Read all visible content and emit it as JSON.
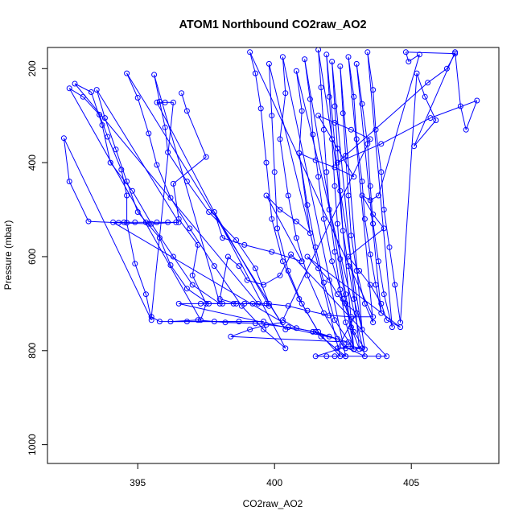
{
  "chart_data": {
    "type": "scatter",
    "title": "ATOM1 Northbound CO2raw_AO2",
    "xlabel": "CO2raw_AO2",
    "ylabel": "Pressure (mbar)",
    "xlim": [
      391.7,
      408.2
    ],
    "ylim": [
      1040,
      155
    ],
    "y_reversed": true,
    "grid": false,
    "legend": "none",
    "marker": "open-circle",
    "connected": true,
    "xticks": [
      395,
      400,
      405
    ],
    "yticks": [
      200,
      400,
      600,
      800,
      1000
    ],
    "series": [
      {
        "color": "#0000ff",
        "points": [
          [
            396.6,
            252
          ],
          [
            396.8,
            290
          ],
          [
            397.5,
            388
          ],
          [
            396.3,
            445
          ],
          [
            396.5,
            520
          ],
          [
            397.2,
            575
          ],
          [
            397.0,
            640
          ],
          [
            397.5,
            700
          ],
          [
            397.3,
            735
          ],
          [
            392.5,
            242
          ],
          [
            393.0,
            260
          ],
          [
            393.6,
            298
          ],
          [
            393.9,
            345
          ],
          [
            394.4,
            415
          ],
          [
            394.6,
            470
          ],
          [
            394.6,
            528
          ],
          [
            394.9,
            615
          ],
          [
            395.3,
            680
          ],
          [
            395.5,
            735
          ],
          [
            392.3,
            348
          ],
          [
            392.5,
            440
          ],
          [
            393.2,
            525
          ],
          [
            394.3,
            528
          ],
          [
            395.4,
            530
          ],
          [
            396.5,
            527
          ],
          [
            393.5,
            245
          ],
          [
            393.8,
            305
          ],
          [
            394.2,
            372
          ],
          [
            394.6,
            440
          ],
          [
            395.0,
            505
          ],
          [
            395.8,
            560
          ],
          [
            396.2,
            618
          ],
          [
            396.8,
            668
          ],
          [
            397.6,
            700
          ],
          [
            398.5,
            700
          ],
          [
            399.4,
            700
          ],
          [
            392.7,
            232
          ],
          [
            393.3,
            250
          ],
          [
            393.7,
            320
          ],
          [
            394.0,
            400
          ],
          [
            394.8,
            460
          ],
          [
            395.5,
            530
          ],
          [
            396.3,
            600
          ],
          [
            397.0,
            660
          ],
          [
            398.0,
            700
          ],
          [
            395.6,
            213
          ],
          [
            395.8,
            270
          ],
          [
            396.0,
            325
          ],
          [
            396.1,
            378
          ],
          [
            396.8,
            440
          ],
          [
            397.6,
            505
          ],
          [
            398.6,
            565
          ],
          [
            399.3,
            625
          ],
          [
            399.8,
            700
          ],
          [
            400.4,
            755
          ],
          [
            394.6,
            210
          ],
          [
            395.0,
            262
          ],
          [
            395.4,
            338
          ],
          [
            395.7,
            405
          ],
          [
            396.2,
            475
          ],
          [
            396.9,
            540
          ],
          [
            397.8,
            620
          ],
          [
            398.8,
            705
          ],
          [
            399.6,
            755
          ],
          [
            400.4,
            795
          ],
          [
            395.7,
            272
          ],
          [
            396.0,
            272
          ],
          [
            396.3,
            272
          ],
          [
            395.5,
            728
          ],
          [
            395.8,
            738
          ],
          [
            396.8,
            738
          ],
          [
            397.8,
            738
          ],
          [
            398.7,
            738
          ],
          [
            399.6,
            738
          ],
          [
            396.2,
            738
          ],
          [
            397.2,
            735
          ],
          [
            398.2,
            740
          ],
          [
            399.3,
            742
          ],
          [
            400.5,
            750
          ],
          [
            401.5,
            760
          ],
          [
            402.3,
            775
          ],
          [
            396.5,
            700
          ],
          [
            397.3,
            700
          ],
          [
            398.1,
            700
          ],
          [
            398.9,
            700
          ],
          [
            399.7,
            700
          ],
          [
            400.5,
            705
          ],
          [
            401.2,
            715
          ],
          [
            402.0,
            725
          ],
          [
            402.8,
            728
          ],
          [
            403.6,
            728
          ],
          [
            399.1,
            165
          ],
          [
            399.3,
            210
          ],
          [
            399.5,
            285
          ],
          [
            399.7,
            400
          ],
          [
            399.9,
            520
          ],
          [
            400.3,
            610
          ],
          [
            400.9,
            690
          ],
          [
            401.6,
            760
          ],
          [
            402.4,
            812
          ],
          [
            399.8,
            190
          ],
          [
            399.9,
            300
          ],
          [
            400.0,
            420
          ],
          [
            400.1,
            540
          ],
          [
            400.5,
            630
          ],
          [
            401.0,
            700
          ],
          [
            401.7,
            770
          ],
          [
            402.6,
            812
          ],
          [
            400.3,
            175
          ],
          [
            400.4,
            252
          ],
          [
            400.2,
            350
          ],
          [
            400.5,
            470
          ],
          [
            400.8,
            560
          ],
          [
            401.2,
            640
          ],
          [
            401.8,
            720
          ],
          [
            402.5,
            790
          ],
          [
            403.3,
            812
          ],
          [
            400.8,
            205
          ],
          [
            401.0,
            290
          ],
          [
            400.9,
            380
          ],
          [
            401.2,
            490
          ],
          [
            401.5,
            580
          ],
          [
            401.8,
            655
          ],
          [
            402.2,
            735
          ],
          [
            402.9,
            797
          ],
          [
            401.1,
            180
          ],
          [
            401.3,
            265
          ],
          [
            401.4,
            340
          ],
          [
            401.6,
            430
          ],
          [
            401.8,
            520
          ],
          [
            402.1,
            610
          ],
          [
            402.5,
            690
          ],
          [
            402.9,
            760
          ],
          [
            403.3,
            797
          ],
          [
            401.6,
            160
          ],
          [
            401.7,
            240
          ],
          [
            401.8,
            330
          ],
          [
            401.9,
            420
          ],
          [
            402.0,
            500
          ],
          [
            402.2,
            590
          ],
          [
            402.4,
            670
          ],
          [
            402.6,
            740
          ],
          [
            402.9,
            797
          ],
          [
            401.9,
            170
          ],
          [
            402.0,
            260
          ],
          [
            402.1,
            350
          ],
          [
            402.2,
            450
          ],
          [
            402.3,
            530
          ],
          [
            402.4,
            605
          ],
          [
            402.6,
            680
          ],
          [
            402.8,
            750
          ],
          [
            403.1,
            797
          ],
          [
            402.1,
            185
          ],
          [
            402.2,
            280
          ],
          [
            402.3,
            370
          ],
          [
            402.4,
            460
          ],
          [
            402.5,
            545
          ],
          [
            402.7,
            620
          ],
          [
            402.9,
            690
          ],
          [
            403.2,
            755
          ],
          [
            402.4,
            195
          ],
          [
            402.5,
            295
          ],
          [
            402.6,
            385
          ],
          [
            402.7,
            470
          ],
          [
            402.8,
            555
          ],
          [
            403.0,
            630
          ],
          [
            403.3,
            700
          ],
          [
            403.6,
            740
          ],
          [
            402.7,
            175
          ],
          [
            402.9,
            260
          ],
          [
            403.0,
            350
          ],
          [
            403.2,
            440
          ],
          [
            403.3,
            520
          ],
          [
            403.5,
            595
          ],
          [
            403.7,
            660
          ],
          [
            403.9,
            720
          ],
          [
            403.0,
            190
          ],
          [
            403.2,
            275
          ],
          [
            403.4,
            360
          ],
          [
            403.5,
            450
          ],
          [
            403.6,
            530
          ],
          [
            403.8,
            610
          ],
          [
            404.0,
            680
          ],
          [
            404.3,
            750
          ],
          [
            403.4,
            165
          ],
          [
            403.6,
            245
          ],
          [
            403.7,
            330
          ],
          [
            403.9,
            420
          ],
          [
            404.0,
            500
          ],
          [
            404.2,
            580
          ],
          [
            404.4,
            660
          ],
          [
            404.6,
            740
          ],
          [
            405.2,
            210
          ],
          [
            405.5,
            260
          ],
          [
            405.9,
            310
          ],
          [
            405.1,
            365
          ],
          [
            406.6,
            165
          ],
          [
            406.8,
            280
          ],
          [
            407.0,
            330
          ],
          [
            407.4,
            268
          ],
          [
            405.7,
            305
          ],
          [
            403.9,
            360
          ],
          [
            402.3,
            400
          ],
          [
            405.6,
            230
          ],
          [
            406.3,
            200
          ],
          [
            406.6,
            168
          ],
          [
            404.8,
            165
          ],
          [
            404.9,
            185
          ],
          [
            405.3,
            170
          ],
          [
            403.8,
            470
          ],
          [
            403.5,
            480
          ],
          [
            403.2,
            470
          ],
          [
            403.6,
            510
          ],
          [
            404.0,
            540
          ],
          [
            402.7,
            600
          ],
          [
            403.1,
            630
          ],
          [
            403.5,
            660
          ],
          [
            403.9,
            700
          ],
          [
            404.1,
            735
          ],
          [
            404.6,
            750
          ],
          [
            401.2,
            600
          ],
          [
            401.6,
            625
          ],
          [
            402.0,
            650
          ],
          [
            402.3,
            680
          ],
          [
            402.6,
            700
          ],
          [
            403.0,
            720
          ],
          [
            402.3,
            795
          ],
          [
            402.6,
            795
          ],
          [
            402.9,
            797
          ],
          [
            403.2,
            795
          ],
          [
            402.7,
            790
          ],
          [
            401.5,
            812
          ],
          [
            401.9,
            812
          ],
          [
            402.2,
            812
          ],
          [
            402.6,
            812
          ],
          [
            403.8,
            812
          ],
          [
            404.1,
            812
          ],
          [
            400.6,
            595
          ],
          [
            400.2,
            640
          ],
          [
            399.6,
            660
          ],
          [
            399.0,
            650
          ],
          [
            398.7,
            620
          ],
          [
            398.3,
            600
          ],
          [
            398.0,
            690
          ],
          [
            398.6,
            700
          ],
          [
            399.2,
            700
          ],
          [
            399.8,
            705
          ],
          [
            397.8,
            505
          ],
          [
            398.1,
            560
          ],
          [
            398.9,
            575
          ],
          [
            399.9,
            590
          ],
          [
            401.0,
            610
          ],
          [
            399.7,
            470
          ],
          [
            400.2,
            500
          ],
          [
            400.8,
            525
          ],
          [
            401.3,
            550
          ],
          [
            400.9,
            380
          ],
          [
            401.5,
            395
          ],
          [
            402.2,
            410
          ],
          [
            402.9,
            430
          ],
          [
            401.6,
            300
          ],
          [
            402.2,
            315
          ],
          [
            402.8,
            330
          ],
          [
            403.5,
            350
          ],
          [
            400.3,
            735
          ],
          [
            400.8,
            752
          ],
          [
            401.4,
            760
          ],
          [
            402.0,
            770
          ],
          [
            402.7,
            782
          ],
          [
            398.4,
            770
          ],
          [
            399.1,
            755
          ],
          [
            399.7,
            745
          ],
          [
            400.3,
            740
          ],
          [
            394.1,
            527
          ],
          [
            394.5,
            527
          ],
          [
            394.9,
            527
          ],
          [
            395.3,
            527
          ],
          [
            395.7,
            527
          ],
          [
            396.1,
            527
          ],
          [
            396.4,
            527
          ]
        ]
      }
    ]
  }
}
